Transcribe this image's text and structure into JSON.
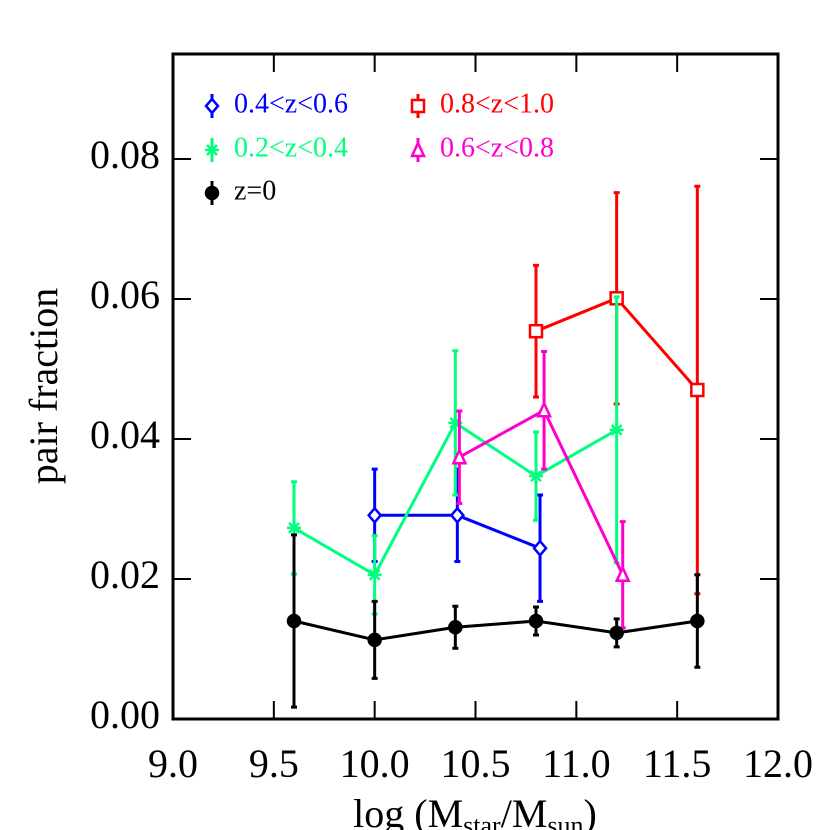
{
  "chart_data": {
    "type": "line",
    "xlabel": [
      "log (M",
      "star",
      "/M",
      "sun",
      ")"
    ],
    "ylabel": "pair fraction",
    "xlim": [
      9.0,
      12.0
    ],
    "ylim": [
      0,
      0.095
    ],
    "xticks": [
      {
        "value": 9,
        "label": "9.0"
      },
      9.5,
      {
        "value": 10,
        "label": "10.0"
      },
      10.5,
      {
        "value": 11,
        "label": "11.0"
      },
      11.5,
      {
        "value": 12,
        "label": "12.0"
      }
    ],
    "yticks": [
      {
        "value": 0,
        "label": "0.00"
      },
      0.02,
      0.04,
      0.06,
      0.08
    ],
    "series": [
      {
        "name": "0.4<z<0.6",
        "color": "#0000ff",
        "marker": "diamond",
        "x": [
          10.0,
          10.41,
          10.82
        ],
        "values": [
          0.0291,
          0.0291,
          0.0244
        ],
        "errors": [
          0.0066,
          0.0066,
          0.0076
        ]
      },
      {
        "name": "0.8<z<1.0",
        "color": "#ff0000",
        "marker": "square",
        "x": [
          10.8,
          11.2,
          11.6
        ],
        "values": [
          0.0554,
          0.0601,
          0.047
        ],
        "errors": [
          0.0094,
          0.0151,
          0.0291
        ]
      },
      {
        "name": "0.2<z<0.4",
        "color": "#00ff7f",
        "marker": "asterisk",
        "x": [
          9.6,
          10.0,
          10.4,
          10.8,
          11.2
        ],
        "values": [
          0.0273,
          0.0206,
          0.0423,
          0.0347,
          0.0413
        ],
        "errors": [
          0.0066,
          0.0056,
          0.0103,
          0.0063,
          0.019
        ]
      },
      {
        "name": "0.6<z<0.8",
        "color": "#ff00cc",
        "marker": "triangle",
        "x": [
          10.42,
          10.84,
          11.23
        ],
        "values": [
          0.0374,
          0.0441,
          0.0206
        ],
        "errors": [
          0.0066,
          0.0084,
          0.0076
        ]
      },
      {
        "name": "z=0",
        "color": "#000000",
        "marker": "circle",
        "x": [
          9.6,
          10.0,
          10.4,
          10.8,
          11.2,
          11.6
        ],
        "values": [
          0.014,
          0.0113,
          0.0131,
          0.014,
          0.0123,
          0.014
        ],
        "errors": [
          0.0123,
          0.0055,
          0.003,
          0.002,
          0.002,
          0.0066
        ]
      }
    ]
  }
}
